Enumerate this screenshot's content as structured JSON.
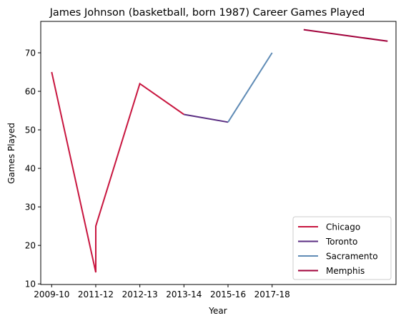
{
  "chart_data": {
    "type": "line",
    "title": "James Johnson (basketball, born 1987) Career Games Played",
    "xlabel": "Year",
    "ylabel": "Games Played",
    "x_ticks": [
      "2009-10",
      "2011-12",
      "2012-13",
      "2013-14",
      "2015-16",
      "2017-18"
    ],
    "x_tick_positions": [
      0,
      1.05,
      2.1,
      3.15,
      4.2,
      5.25
    ],
    "y_ticks": [
      10,
      20,
      30,
      40,
      50,
      60,
      70
    ],
    "ylim": [
      9.85,
      78.15
    ],
    "xlim": [
      -0.26,
      8.2
    ],
    "grid": false,
    "legend_position": "lower-right",
    "series": [
      {
        "name": "Chicago",
        "color": "#c8163f",
        "points": [
          [
            0,
            65
          ],
          [
            1.05,
            13
          ],
          [
            1.05,
            25
          ],
          [
            2.1,
            62
          ],
          [
            3.15,
            54
          ]
        ]
      },
      {
        "name": "Toronto",
        "color": "#5a2d82",
        "points": [
          [
            3.15,
            54
          ],
          [
            4.2,
            52
          ]
        ]
      },
      {
        "name": "Sacramento",
        "color": "#5f8bb5",
        "points": [
          [
            4.2,
            52
          ],
          [
            5.25,
            70
          ]
        ]
      },
      {
        "name": "Memphis",
        "color": "#a1003a",
        "points": [
          [
            6.0,
            76
          ],
          [
            8.0,
            73
          ]
        ]
      }
    ]
  }
}
